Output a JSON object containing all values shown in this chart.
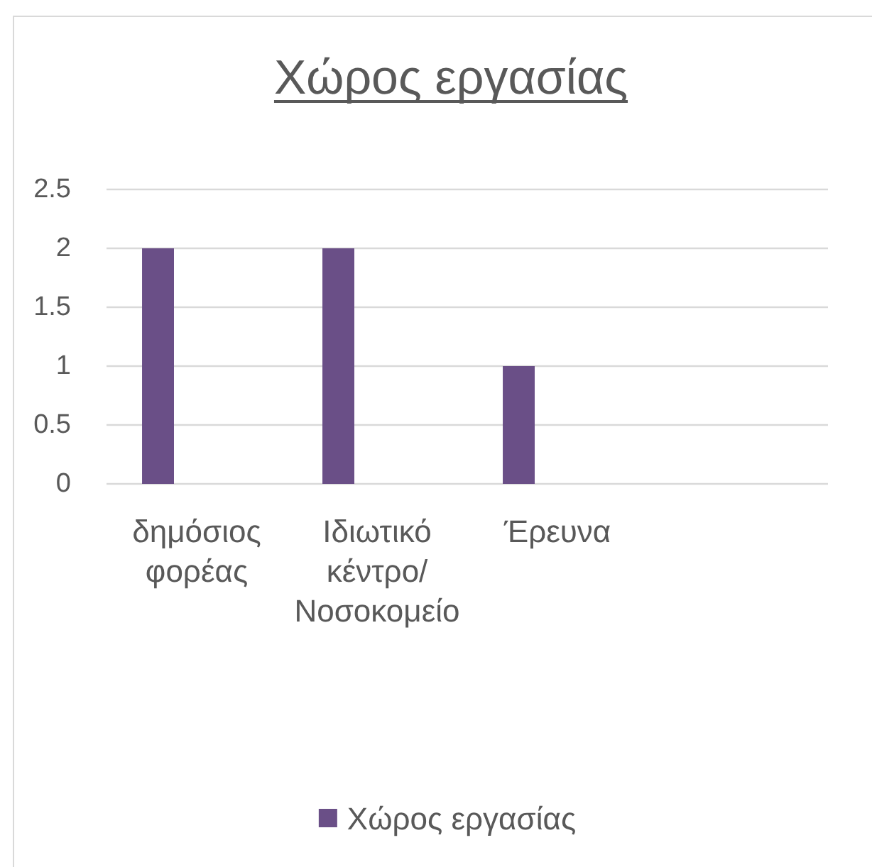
{
  "chart_data": {
    "type": "bar",
    "title": "Χώρος εργασίας",
    "categories": [
      "δημόσιος φορέας",
      "Ιδιωτικό κέντρο/Νοσοκομείο",
      "Έρευνα",
      null
    ],
    "series": [
      {
        "name": "Χώρος εργασίας",
        "color": "#6a4f87",
        "values": [
          2,
          2,
          1,
          null
        ]
      }
    ],
    "ylim": [
      0,
      2.5
    ],
    "yticks": [
      0,
      0.5,
      1,
      1.5,
      2,
      2.5
    ],
    "grid": "y",
    "legend": "bottom"
  }
}
